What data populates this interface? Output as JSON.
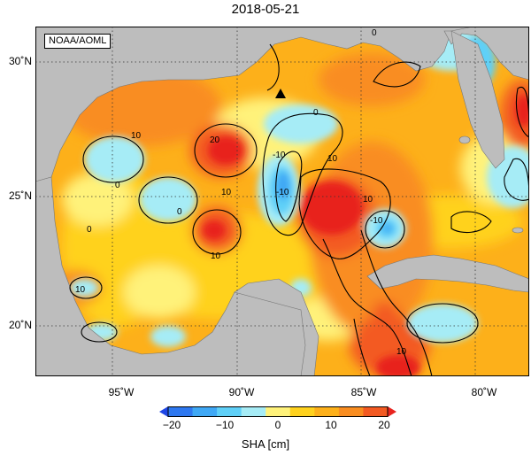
{
  "title": "2018-05-21",
  "credit": "NOAA/AOML",
  "colorbar": {
    "label": "SHA [cm]",
    "ticks": [
      "−20",
      "−10",
      "0",
      "10",
      "20"
    ],
    "colors": [
      "#1e46e6",
      "#2e78f0",
      "#3fa8f5",
      "#5fd0f8",
      "#a6ecf6",
      "#fff27a",
      "#ffd21e",
      "#fdb01a",
      "#f98d20",
      "#f35a22",
      "#e8231e"
    ]
  },
  "map": {
    "lon_labels": [
      "95˚W",
      "90˚W",
      "85˚W",
      "80˚W"
    ],
    "lat_labels": [
      "30˚N",
      "25˚N",
      "20˚N"
    ],
    "land_color": "#bdbdbd",
    "marker": "black-triangle",
    "contour_labels": [
      "0",
      "0",
      "0",
      "0",
      "0",
      "10",
      "10",
      "10",
      "10",
      "10",
      "10",
      "20",
      "-10",
      "-10",
      "-10",
      "10"
    ]
  }
}
